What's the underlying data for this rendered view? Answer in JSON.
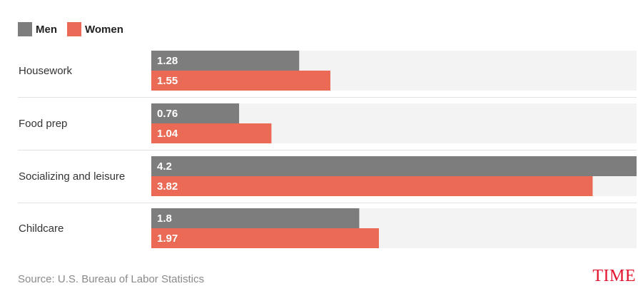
{
  "legend": {
    "items": [
      {
        "label": "Men",
        "color": "#7d7d7d"
      },
      {
        "label": "Women",
        "color": "#ea6a55"
      }
    ]
  },
  "source": "Source: U.S. Bureau of Labor Statistics",
  "logo": "TIME",
  "chart_data": {
    "type": "bar",
    "orientation": "horizontal",
    "categories": [
      "Housework",
      "Food prep",
      "Socializing and leisure",
      "Childcare"
    ],
    "series": [
      {
        "name": "Men",
        "values": [
          1.28,
          0.76,
          4.2,
          1.8
        ],
        "labels": [
          "1.28",
          "0.76",
          "4.2",
          "1.8"
        ],
        "color": "#7d7d7d"
      },
      {
        "name": "Women",
        "values": [
          1.55,
          1.04,
          3.82,
          1.97
        ],
        "labels": [
          "1.55",
          "1.04",
          "3.82",
          "1.97"
        ],
        "color": "#ea6a55"
      }
    ],
    "xlim": [
      0,
      4.2
    ],
    "grid": false,
    "legend_position": "top-left",
    "track_color": "#f3f3f3"
  }
}
